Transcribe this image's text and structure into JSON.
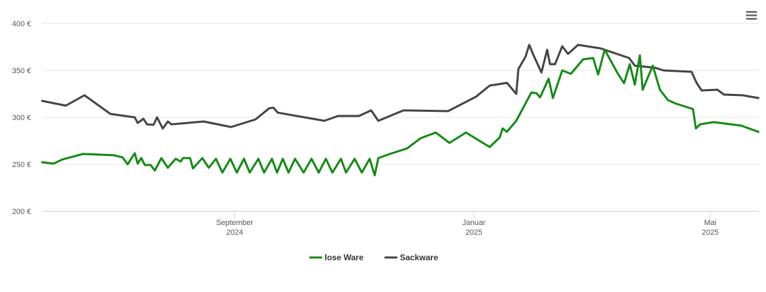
{
  "chart_data": {
    "type": "line",
    "xlim": [
      2024.399,
      2025.397
    ],
    "xticks": [
      {
        "value": 2024.667,
        "label": [
          "September",
          "2024"
        ]
      },
      {
        "value": 2025.0,
        "label": [
          "Januar",
          "2025"
        ]
      },
      {
        "value": 2025.329,
        "label": [
          "Mai",
          "2025"
        ]
      }
    ],
    "ylim": [
      200,
      400
    ],
    "yticks": [
      {
        "value": 200,
        "label": "200 €"
      },
      {
        "value": 250,
        "label": "250 €"
      },
      {
        "value": 300,
        "label": "300 €"
      },
      {
        "value": 350,
        "label": "350 €"
      },
      {
        "value": 400,
        "label": "400 €"
      }
    ],
    "grid": true,
    "legend": "bottom",
    "series": [
      {
        "name": "lose Ware",
        "color": "#138a13",
        "x": [
          2024.399,
          2024.415,
          2024.427,
          2024.456,
          2024.499,
          2024.511,
          2024.518,
          2024.528,
          2024.532,
          2024.537,
          2024.542,
          2024.55,
          2024.556,
          2024.565,
          2024.574,
          2024.585,
          2024.592,
          2024.595,
          2024.605,
          2024.609,
          2024.622,
          2024.631,
          2024.641,
          2024.65,
          2024.661,
          2024.67,
          2024.68,
          2024.688,
          2024.7,
          2024.708,
          2024.719,
          2024.726,
          2024.734,
          2024.742,
          2024.751,
          2024.763,
          2024.774,
          2024.784,
          2024.794,
          2024.803,
          2024.815,
          2024.822,
          2024.834,
          2024.844,
          2024.855,
          2024.862,
          2024.867,
          2024.883,
          2024.907,
          2024.926,
          2024.947,
          2024.966,
          2024.989,
          2025.022,
          2025.036,
          2025.04,
          2025.046,
          2025.059,
          2025.08,
          2025.087,
          2025.092,
          2025.097,
          2025.104,
          2025.11,
          2025.123,
          2025.135,
          2025.152,
          2025.166,
          2025.173,
          2025.182,
          2025.2,
          2025.209,
          2025.217,
          2025.224,
          2025.231,
          2025.235,
          2025.249,
          2025.259,
          2025.27,
          2025.281,
          2025.305,
          2025.309,
          2025.315,
          2025.334,
          2025.372,
          2025.396
        ],
        "values": [
          252.2,
          250.7,
          255.1,
          261,
          259.6,
          257.4,
          250,
          261.8,
          250.7,
          256.6,
          249.3,
          249.3,
          243.4,
          256.6,
          246.3,
          255.9,
          252.9,
          256.6,
          256.6,
          245.6,
          256.6,
          246.3,
          255.9,
          241.2,
          255.9,
          241.2,
          255.9,
          241.2,
          255.9,
          241.2,
          255.9,
          241.2,
          255.9,
          241.2,
          255.9,
          241.2,
          255.9,
          241.2,
          255.9,
          241.2,
          255.9,
          241.2,
          255.9,
          241.2,
          255.9,
          238.2,
          256.6,
          261,
          266.9,
          277.9,
          283.8,
          272.8,
          283.8,
          268.4,
          278.7,
          288.2,
          284.6,
          296.3,
          326.5,
          325.7,
          321.3,
          329.4,
          341.2,
          320.6,
          350,
          346.3,
          361.8,
          363.2,
          345.6,
          372.2,
          347,
          336.3,
          356.6,
          334.8,
          366.2,
          329.4,
          355.1,
          329.4,
          318.4,
          314.7,
          308.8,
          288.2,
          292.6,
          294.9,
          291.2,
          284.6
        ]
      },
      {
        "name": "Sackware",
        "color": "#434348",
        "x": [
          2024.399,
          2024.432,
          2024.458,
          2024.494,
          2024.528,
          2024.532,
          2024.54,
          2024.545,
          2024.554,
          2024.559,
          2024.567,
          2024.574,
          2024.579,
          2024.624,
          2024.662,
          2024.696,
          2024.715,
          2024.721,
          2024.727,
          2024.792,
          2024.811,
          2024.84,
          2024.857,
          2024.867,
          2024.902,
          2024.964,
          2025.003,
          2025.022,
          2025.046,
          2025.059,
          2025.062,
          2025.072,
          2025.077,
          2025.083,
          2025.094,
          2025.102,
          2025.106,
          2025.113,
          2025.123,
          2025.131,
          2025.145,
          2025.176,
          2025.216,
          2025.224,
          2025.252,
          2025.264,
          2025.303,
          2025.31,
          2025.317,
          2025.339,
          2025.348,
          2025.374,
          2025.396
        ],
        "values": [
          317.6,
          312.5,
          323.5,
          303.7,
          300,
          294,
          298.5,
          292.6,
          292,
          300,
          288,
          295.6,
          292.6,
          295.6,
          289.7,
          297.8,
          309.6,
          310.3,
          305,
          296.3,
          301.5,
          301.5,
          307.4,
          296.3,
          307.4,
          306.6,
          322,
          333.8,
          336.8,
          325,
          351.5,
          364.7,
          377.2,
          366.2,
          347.8,
          372,
          356.6,
          356.6,
          375.7,
          367.6,
          377.2,
          373.5,
          363.2,
          355.1,
          352.9,
          350,
          348.5,
          336.8,
          328.7,
          329.4,
          324.3,
          323.5,
          320.6
        ]
      }
    ]
  }
}
